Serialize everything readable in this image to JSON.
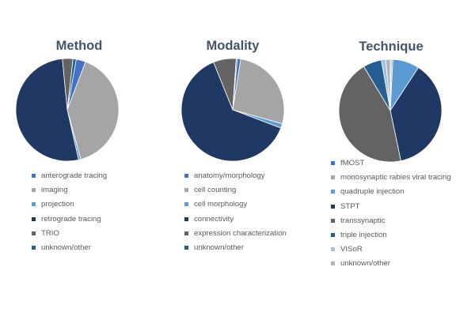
{
  "chart_data": [
    {
      "type": "pie",
      "title": "Method",
      "categories": [
        "anterograde tracing",
        "imaging",
        "projection",
        "retrograde tracing",
        "TRIO",
        "unknown/other"
      ],
      "values": [
        3,
        40,
        0.7,
        52,
        3.3,
        1
      ],
      "colors": [
        "#4472c4",
        "#a5a5a5",
        "#5b9bd5",
        "#203864",
        "#636363",
        "#255e91"
      ],
      "legend_position": "bottom"
    },
    {
      "type": "pie",
      "title": "Modality",
      "categories": [
        "anatomy/morphology",
        "cell counting",
        "cell morphology",
        "connectivity",
        "expression characterization",
        "unknown/other"
      ],
      "values": [
        1.1,
        26.9,
        1.4,
        63.1,
        7.2,
        0.3
      ],
      "colors": [
        "#4472c4",
        "#a5a5a5",
        "#5b9bd5",
        "#203864",
        "#636363",
        "#255e91"
      ],
      "legend_position": "bottom"
    },
    {
      "type": "pie",
      "title": "Technique",
      "categories": [
        "fMOST",
        "monosynaptic rabies viral tracing",
        "quadruple injection",
        "STPT",
        "transsynaptic",
        "triple injection",
        "VISoR",
        "unknown/other"
      ],
      "values": [
        0.3,
        0.5,
        8.4,
        37.5,
        44.7,
        5.8,
        1.4,
        1.4
      ],
      "colors": [
        "#4472c4",
        "#a5a5a5",
        "#5b9bd5",
        "#203864",
        "#636363",
        "#255e91",
        "#9dc3e6",
        "#b4b4b4"
      ],
      "legend_position": "bottom"
    }
  ]
}
